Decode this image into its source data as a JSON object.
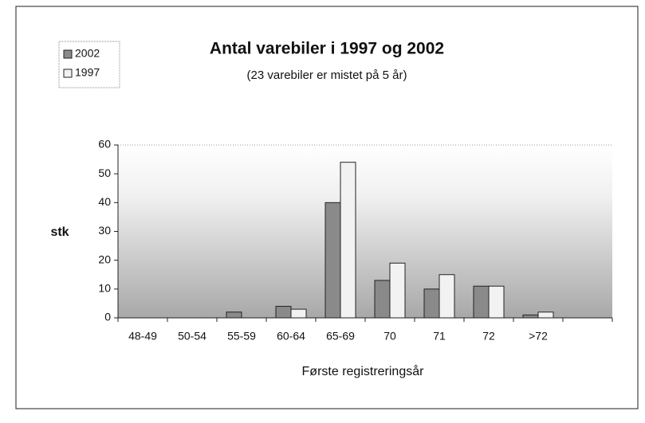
{
  "chart_data": {
    "type": "bar",
    "title": "Antal varebiler i 1997 og 2002",
    "subtitle": "(23 varebiler er mistet på 5 år)",
    "x_label": "Første registreringsår",
    "y_label": "stk",
    "categories": [
      "48-49",
      "50-54",
      "55-59",
      "60-64",
      "65-69",
      "70",
      "71",
      "72",
      ">72",
      null
    ],
    "series": [
      {
        "name": "2002",
        "color": "#8a8a8a",
        "values": [
          0,
          0,
          2,
          4,
          40,
          13,
          10,
          11,
          1,
          0
        ]
      },
      {
        "name": "1997",
        "color": "#f2f2f2",
        "values": [
          0,
          0,
          0,
          3,
          54,
          19,
          15,
          11,
          2,
          0
        ]
      }
    ],
    "ylim": [
      0,
      60
    ],
    "yticks": [
      0,
      10,
      20,
      30,
      40,
      50,
      60
    ],
    "grid": false,
    "legend": "top-left"
  }
}
